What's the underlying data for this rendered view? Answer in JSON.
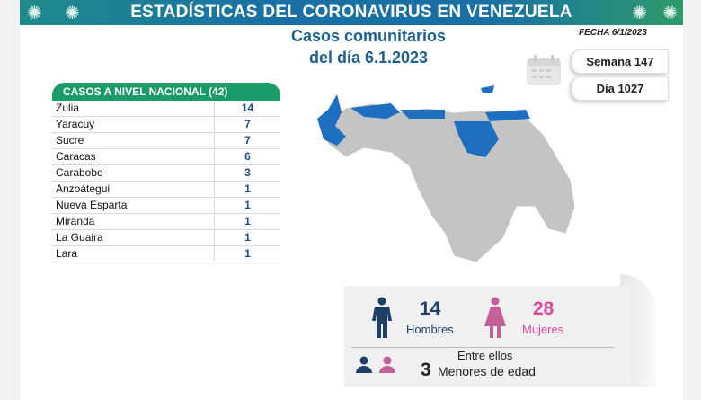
{
  "header": {
    "title": "ESTADÍSTICAS DEL CORONAVIRUS EN VENEZUELA",
    "subtitle_line1": "Casos comunitarios",
    "subtitle_line2": "del día 6.1.2023",
    "fecha": "FECHA 6/1/2023",
    "semana": "Semana 147",
    "dia": "Día 1027"
  },
  "table": {
    "title": "CASOS A NIVEL NACIONAL  (42)",
    "rows": [
      {
        "state": "Zulia",
        "cases": "14"
      },
      {
        "state": "Yaracuy",
        "cases": "7"
      },
      {
        "state": "Sucre",
        "cases": "7"
      },
      {
        "state": "Caracas",
        "cases": "6"
      },
      {
        "state": "Carabobo",
        "cases": "3"
      },
      {
        "state": "Anzoátegui",
        "cases": "1"
      },
      {
        "state": "Nueva Esparta",
        "cases": "1"
      },
      {
        "state": "Miranda",
        "cases": "1"
      },
      {
        "state": "La Guaira",
        "cases": "1"
      },
      {
        "state": "Lara",
        "cases": "1"
      }
    ]
  },
  "stats": {
    "men": "14",
    "men_label": "Hombres",
    "women": "28",
    "women_label": "Mujeres",
    "among": "Entre ellos",
    "minors": "3",
    "minors_label": "Menores de edad"
  },
  "colors": {
    "men": "#1f3f66",
    "women": "#d9489a",
    "highlight": "#1f6fc0",
    "map_gray": "#c4c4c4",
    "table_header": "#1b9a6a"
  }
}
